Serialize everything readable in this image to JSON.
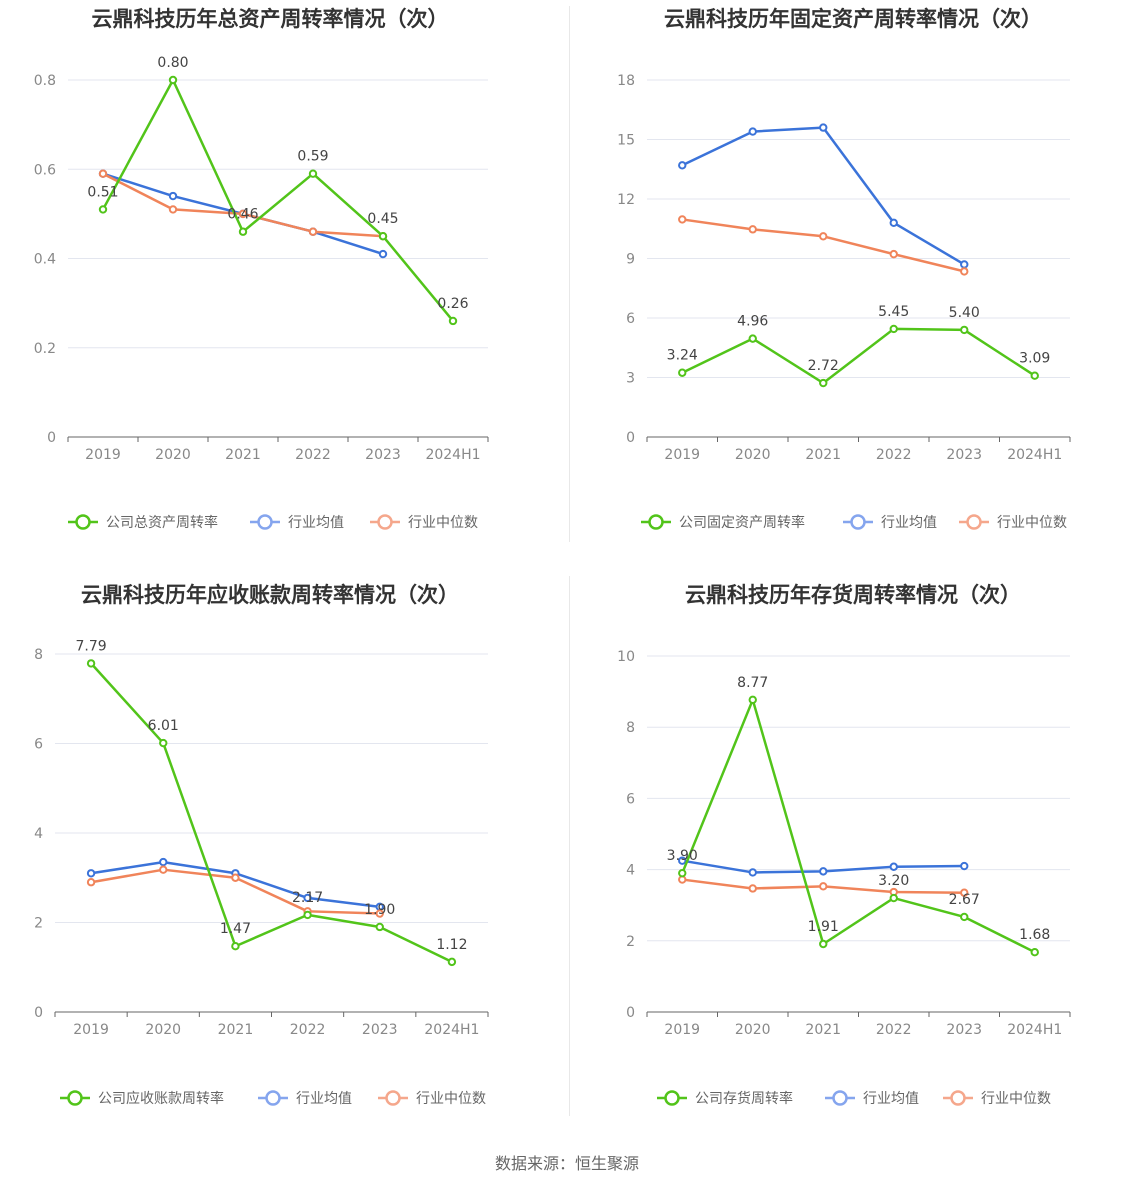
{
  "colors": {
    "company": "#52c41a",
    "avg": "#3b73d9",
    "median": "#f0845a",
    "legend_avg": "#85a5ee",
    "legend_median": "#f5a78c"
  },
  "chart_data": [
    {
      "type": "line",
      "title": "云鼎科技历年总资产周转率情况（次）",
      "categories": [
        "2019",
        "2020",
        "2021",
        "2022",
        "2023",
        "2024H1"
      ],
      "yticks": [
        "0",
        "0.2",
        "0.4",
        "0.6",
        "0.8"
      ],
      "ylim": [
        0,
        0.8
      ],
      "series": [
        {
          "name": "公司总资产周转率",
          "role": "company",
          "values": [
            0.51,
            0.8,
            0.46,
            0.59,
            0.45,
            0.26
          ],
          "labels": [
            "0.51",
            "0.80",
            "0.46",
            "0.59",
            "0.45",
            "0.26"
          ]
        },
        {
          "name": "行业均值",
          "role": "avg",
          "values": [
            0.59,
            0.54,
            0.5,
            0.46,
            0.41,
            null
          ]
        },
        {
          "name": "行业中位数",
          "role": "median",
          "values": [
            0.59,
            0.51,
            0.5,
            0.46,
            0.45,
            null
          ]
        }
      ]
    },
    {
      "type": "line",
      "title": "云鼎科技历年固定资产周转率情况（次）",
      "categories": [
        "2019",
        "2020",
        "2021",
        "2022",
        "2023",
        "2024H1"
      ],
      "yticks": [
        "0",
        "3",
        "6",
        "9",
        "12",
        "15",
        "18"
      ],
      "ylim": [
        0,
        18
      ],
      "series": [
        {
          "name": "公司固定资产周转率",
          "role": "company",
          "values": [
            3.24,
            4.96,
            2.72,
            5.45,
            5.4,
            3.09
          ],
          "labels": [
            "3.24",
            "4.96",
            "2.72",
            "5.45",
            "5.40",
            "3.09"
          ]
        },
        {
          "name": "行业均值",
          "role": "avg",
          "values": [
            13.7,
            15.4,
            15.6,
            10.8,
            8.7,
            null
          ]
        },
        {
          "name": "行业中位数",
          "role": "median",
          "values": [
            10.97,
            10.47,
            10.12,
            9.22,
            8.35,
            null
          ]
        }
      ]
    },
    {
      "type": "line",
      "title": "云鼎科技历年应收账款周转率情况（次）",
      "categories": [
        "2019",
        "2020",
        "2021",
        "2022",
        "2023",
        "2024H1"
      ],
      "yticks": [
        "0",
        "2",
        "4",
        "6",
        "8"
      ],
      "ylim": [
        0,
        8
      ],
      "series": [
        {
          "name": "公司应收账款周转率",
          "role": "company",
          "values": [
            7.79,
            6.01,
            1.47,
            2.17,
            1.9,
            1.12
          ],
          "labels": [
            "7.79",
            "6.01",
            "1.47",
            "2.17",
            "1.90",
            "1.12"
          ]
        },
        {
          "name": "行业均值",
          "role": "avg",
          "values": [
            3.1,
            3.35,
            3.1,
            2.55,
            2.35,
            null
          ]
        },
        {
          "name": "行业中位数",
          "role": "median",
          "values": [
            2.9,
            3.18,
            3.0,
            2.25,
            2.2,
            null
          ]
        }
      ]
    },
    {
      "type": "line",
      "title": "云鼎科技历年存货周转率情况（次）",
      "categories": [
        "2019",
        "2020",
        "2021",
        "2022",
        "2023",
        "2024H1"
      ],
      "yticks": [
        "0",
        "2",
        "4",
        "6",
        "8",
        "10"
      ],
      "ylim": [
        0,
        10
      ],
      "series": [
        {
          "name": "公司存货周转率",
          "role": "company",
          "values": [
            3.9,
            8.77,
            1.91,
            3.2,
            2.67,
            1.68
          ],
          "labels": [
            "3.90",
            "8.77",
            "1.91",
            "3.20",
            "2.67",
            "1.68"
          ]
        },
        {
          "name": "行业均值",
          "role": "avg",
          "values": [
            4.25,
            3.92,
            3.95,
            4.08,
            4.1,
            null
          ]
        },
        {
          "name": "行业中位数",
          "role": "median",
          "values": [
            3.72,
            3.47,
            3.53,
            3.37,
            3.35,
            null
          ]
        }
      ]
    }
  ],
  "source": "数据来源：恒生聚源"
}
